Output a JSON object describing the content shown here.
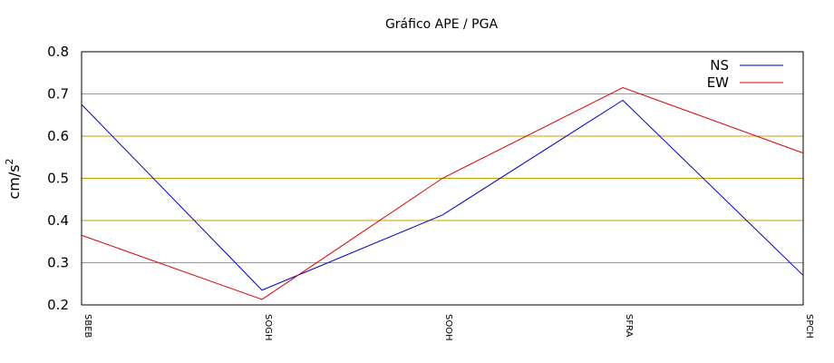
{
  "chart_data": {
    "type": "line",
    "title": "Gráfico  APE / PGA",
    "xlabel": "",
    "ylabel": "cm/s",
    "ylabel_superscript": "2",
    "categories": [
      "SBEB",
      "SOGH",
      "SOOH",
      "SFRA",
      "SPCH"
    ],
    "ylim": [
      0.2,
      0.8
    ],
    "yticks": [
      "0.2",
      "0.3",
      "0.4",
      "0.5",
      "0.6",
      "0.7",
      "0.8"
    ],
    "grid": "horizontal",
    "grid_color": "#c8a000",
    "legend_position": "top-right",
    "series": [
      {
        "name": "NS",
        "color": "#0000cc",
        "values": [
          0.675,
          0.235,
          0.413,
          0.685,
          0.27
        ]
      },
      {
        "name": "EW",
        "color": "#dd0000",
        "values": [
          0.365,
          0.213,
          0.5,
          0.715,
          0.56
        ]
      }
    ]
  }
}
